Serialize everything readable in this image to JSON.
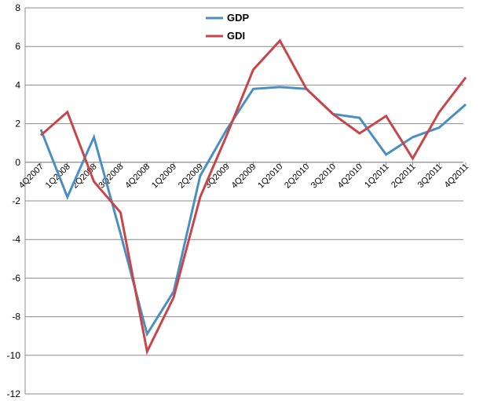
{
  "chart_data": {
    "type": "line",
    "categories": [
      "4Q2007",
      "1Q2008",
      "2Q2008",
      "3Q2008",
      "4Q2008",
      "1Q2009",
      "2Q2009",
      "3Q2009",
      "4Q2009",
      "1Q2010",
      "2Q2010",
      "3Q2010",
      "4Q2010",
      "1Q2011",
      "2Q2011",
      "3Q2011",
      "4Q2011"
    ],
    "ylim": [
      -12,
      8
    ],
    "yticks": [
      -12,
      -10,
      -8,
      -6,
      -4,
      -2,
      0,
      2,
      4,
      6,
      8
    ],
    "grid": true,
    "legend": "top-center",
    "series": [
      {
        "name": "GDP",
        "color": "#4a8fc4",
        "values": [
          1.7,
          -1.8,
          1.3,
          -3.7,
          -8.9,
          -6.7,
          -0.7,
          1.7,
          3.8,
          3.9,
          3.8,
          2.5,
          2.3,
          0.4,
          1.3,
          1.8,
          3.0
        ]
      },
      {
        "name": "GDI",
        "color": "#c8454a",
        "values": [
          1.4,
          2.6,
          -1.0,
          -2.6,
          -9.8,
          -7.0,
          -1.8,
          1.4,
          4.8,
          6.3,
          3.8,
          2.5,
          1.5,
          2.4,
          0.2,
          2.6,
          4.4
        ]
      }
    ]
  }
}
